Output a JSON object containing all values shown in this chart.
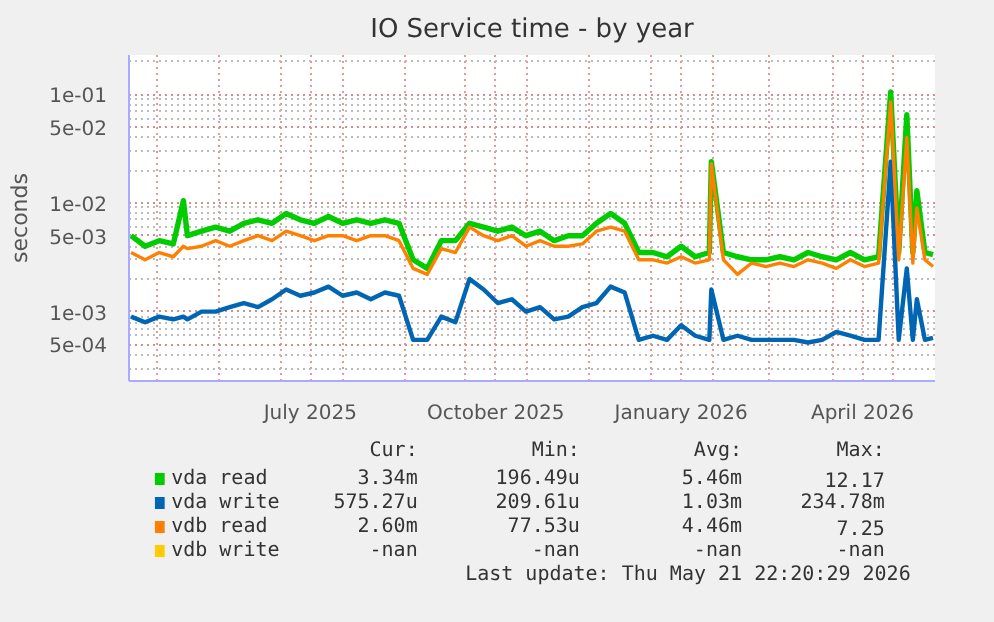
{
  "chart_data": {
    "type": "line",
    "title": "IO Service time - by year",
    "ylabel": "seconds",
    "log": true,
    "grid": true,
    "legend": "bottom",
    "marker": "none",
    "line_style": "solid",
    "xlim": [
      "2025-04-17",
      "2026-05-22"
    ],
    "xticks": [
      {
        "value": "2025-05-01",
        "label": null
      },
      {
        "value": "2025-06-01",
        "label": null
      },
      {
        "value": "2025-07-01",
        "label": null
      },
      {
        "value": "2025-07-16",
        "label": "July 2025"
      },
      {
        "value": "2025-08-01",
        "label": null
      },
      {
        "value": "2025-09-01",
        "label": null
      },
      {
        "value": "2025-10-01",
        "label": null
      },
      {
        "value": "2025-10-16",
        "label": "October 2025"
      },
      {
        "value": "2025-11-01",
        "label": null
      },
      {
        "value": "2025-12-01",
        "label": null
      },
      {
        "value": "2026-01-01",
        "label": null
      },
      {
        "value": "2026-01-16",
        "label": "January 2026"
      },
      {
        "value": "2026-02-01",
        "label": null
      },
      {
        "value": "2026-03-01",
        "label": null
      },
      {
        "value": "2026-04-01",
        "label": null
      },
      {
        "value": "2026-04-16",
        "label": "April 2026"
      },
      {
        "value": "2026-05-01",
        "label": null
      }
    ],
    "ylim": [
      0.00023,
      0.23
    ],
    "yticks": [
      {
        "value": 0.0005,
        "label": "5e-04"
      },
      {
        "value": 0.001,
        "label": "1e-03"
      },
      {
        "value": 0.005,
        "label": "5e-03"
      },
      {
        "value": 0.01,
        "label": "1e-02"
      },
      {
        "value": 0.05,
        "label": "5e-02"
      },
      {
        "value": 0.1,
        "label": "1e-01"
      }
    ],
    "x": [
      "2025-04-18",
      "2025-04-25",
      "2025-05-02",
      "2025-05-09",
      "2025-05-14",
      "2025-05-16",
      "2025-05-23",
      "2025-05-30",
      "2025-06-06",
      "2025-06-13",
      "2025-06-20",
      "2025-06-27",
      "2025-07-04",
      "2025-07-11",
      "2025-07-18",
      "2025-07-25",
      "2025-08-01",
      "2025-08-08",
      "2025-08-15",
      "2025-08-22",
      "2025-08-29",
      "2025-09-05",
      "2025-09-12",
      "2025-09-19",
      "2025-09-26",
      "2025-10-03",
      "2025-10-10",
      "2025-10-17",
      "2025-10-24",
      "2025-10-31",
      "2025-11-07",
      "2025-11-14",
      "2025-11-21",
      "2025-11-28",
      "2025-12-05",
      "2025-12-12",
      "2025-12-19",
      "2025-12-26",
      "2026-01-02",
      "2026-01-09",
      "2026-01-16",
      "2026-01-23",
      "2026-01-30",
      "2026-01-31",
      "2026-02-06",
      "2026-02-13",
      "2026-02-20",
      "2026-02-27",
      "2026-03-06",
      "2026-03-13",
      "2026-03-20",
      "2026-03-27",
      "2026-04-03",
      "2026-04-10",
      "2026-04-17",
      "2026-04-24",
      "2026-04-30",
      "2026-05-04",
      "2026-05-08",
      "2026-05-11",
      "2026-05-13",
      "2026-05-17",
      "2026-05-21"
    ],
    "series": [
      {
        "name": "vda read",
        "color": "#00cc00",
        "values": [
          0.005,
          0.004,
          0.0045,
          0.0042,
          0.0105,
          0.005,
          0.0055,
          0.006,
          0.0055,
          0.0065,
          0.007,
          0.0065,
          0.008,
          0.007,
          0.0065,
          0.0075,
          0.0065,
          0.007,
          0.0065,
          0.007,
          0.0065,
          0.003,
          0.0025,
          0.0045,
          0.0045,
          0.0065,
          0.006,
          0.0055,
          0.006,
          0.005,
          0.0055,
          0.0045,
          0.005,
          0.005,
          0.0065,
          0.008,
          0.0065,
          0.0035,
          0.0035,
          0.0032,
          0.004,
          0.0032,
          0.0035,
          0.024,
          0.0035,
          0.0032,
          0.003,
          0.003,
          0.0032,
          0.003,
          0.0035,
          0.0032,
          0.003,
          0.0035,
          0.003,
          0.0032,
          0.105,
          0.0035,
          0.065,
          0.0035,
          0.013,
          0.0035,
          0.00334
        ]
      },
      {
        "name": "vda write",
        "color": "#0066b3",
        "values": [
          0.0009,
          0.0008,
          0.0009,
          0.00085,
          0.0009,
          0.00085,
          0.001,
          0.001,
          0.0011,
          0.0012,
          0.0011,
          0.0013,
          0.0016,
          0.0014,
          0.0015,
          0.0017,
          0.0014,
          0.0015,
          0.0013,
          0.0015,
          0.0014,
          0.00055,
          0.00055,
          0.0009,
          0.0008,
          0.002,
          0.0016,
          0.0012,
          0.0013,
          0.001,
          0.0011,
          0.00085,
          0.0009,
          0.0011,
          0.0012,
          0.0017,
          0.0015,
          0.00055,
          0.0006,
          0.00055,
          0.00075,
          0.0006,
          0.00055,
          0.0016,
          0.00055,
          0.0006,
          0.00055,
          0.00055,
          0.00055,
          0.00055,
          0.00052,
          0.00055,
          0.00065,
          0.0006,
          0.00055,
          0.00055,
          0.024,
          0.00055,
          0.0025,
          0.00055,
          0.0013,
          0.00055,
          0.000575
        ]
      },
      {
        "name": "vdb read",
        "color": "#ff8000",
        "values": [
          0.0035,
          0.003,
          0.0035,
          0.0032,
          0.004,
          0.0038,
          0.004,
          0.0045,
          0.004,
          0.0045,
          0.005,
          0.0045,
          0.0055,
          0.005,
          0.0045,
          0.005,
          0.005,
          0.0045,
          0.005,
          0.005,
          0.0045,
          0.0025,
          0.0022,
          0.0038,
          0.0035,
          0.006,
          0.005,
          0.0045,
          0.005,
          0.004,
          0.0045,
          0.004,
          0.004,
          0.0042,
          0.0055,
          0.006,
          0.0055,
          0.003,
          0.003,
          0.0028,
          0.0032,
          0.0028,
          0.003,
          0.023,
          0.003,
          0.0022,
          0.0028,
          0.0026,
          0.0028,
          0.0026,
          0.003,
          0.0028,
          0.0025,
          0.003,
          0.0026,
          0.0028,
          0.085,
          0.003,
          0.04,
          0.0028,
          0.009,
          0.003,
          0.0026
        ]
      },
      {
        "name": "vdb write",
        "color": "#ffcc00",
        "values": [
          null,
          null,
          null,
          null,
          null,
          null,
          null,
          null,
          null,
          null,
          null,
          null,
          null,
          null,
          null,
          null,
          null,
          null,
          null,
          null,
          null,
          null,
          null,
          null,
          null,
          null,
          null,
          null,
          null,
          null,
          null,
          null,
          null,
          null,
          null,
          null,
          null,
          null,
          null,
          null,
          null,
          null,
          null,
          null,
          null,
          null,
          null,
          null,
          null,
          null,
          null,
          null,
          null,
          null,
          null,
          null,
          null,
          null,
          null,
          null,
          null,
          null,
          null
        ]
      }
    ],
    "annotations": [
      "Cur:",
      "Min:",
      "Avg:",
      "Max:",
      "3.34m",
      "196.49u",
      "5.46m",
      "12.17",
      "575.27u",
      "209.61u",
      "1.03m",
      "234.78m",
      "2.60m",
      "77.53u",
      "4.46m",
      "7.25",
      "-nan",
      "-nan",
      "-nan",
      "-nan",
      "Last update: Thu May 21 22:20:29 2026"
    ]
  }
}
